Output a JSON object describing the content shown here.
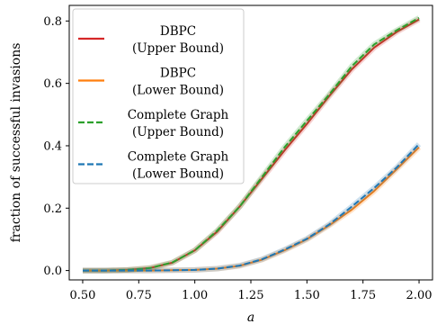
{
  "chart_data": {
    "type": "line",
    "xlabel": "a",
    "ylabel": "fraction of successful invasions",
    "xlim": [
      0.44,
      2.06
    ],
    "ylim": [
      -0.03,
      0.85
    ],
    "xticks": [
      "0.50",
      "0.75",
      "1.00",
      "1.25",
      "1.50",
      "1.75",
      "2.00"
    ],
    "yticks": [
      "0.0",
      "0.2",
      "0.4",
      "0.6",
      "0.8"
    ],
    "grid": false,
    "legend_position": "top-left",
    "x": [
      0.5,
      0.6,
      0.7,
      0.8,
      0.9,
      1.0,
      1.1,
      1.2,
      1.3,
      1.4,
      1.5,
      1.6,
      1.7,
      1.8,
      1.9,
      2.0
    ],
    "series": [
      {
        "name": "DBPC (Upper Bound)",
        "legend_lines": [
          "DBPC",
          "(Upper Bound)"
        ],
        "color": "#d62728",
        "dash": "solid",
        "values": [
          0.0,
          0.0,
          0.002,
          0.008,
          0.025,
          0.065,
          0.125,
          0.205,
          0.295,
          0.385,
          0.47,
          0.56,
          0.645,
          0.715,
          0.765,
          0.805
        ]
      },
      {
        "name": "DBPC (Lower Bound)",
        "legend_lines": [
          "DBPC",
          "(Lower Bound)"
        ],
        "color": "#ff7f0e",
        "dash": "solid",
        "values": [
          0.0,
          0.0,
          0.0,
          0.0,
          0.001,
          0.002,
          0.006,
          0.015,
          0.035,
          0.065,
          0.1,
          0.145,
          0.195,
          0.255,
          0.325,
          0.395
        ]
      },
      {
        "name": "Complete Graph (Upper Bound)",
        "legend_lines": [
          "Complete Graph",
          "(Upper Bound)"
        ],
        "color": "#2ca02c",
        "dash": "dashed",
        "values": [
          0.0,
          0.0,
          0.002,
          0.008,
          0.026,
          0.065,
          0.128,
          0.205,
          0.3,
          0.395,
          0.48,
          0.565,
          0.655,
          0.725,
          0.77,
          0.81
        ]
      },
      {
        "name": "Complete Graph (Lower Bound)",
        "legend_lines": [
          "Complete Graph",
          "(Lower Bound)"
        ],
        "color": "#1f77b4",
        "dash": "dashed",
        "values": [
          0.0,
          0.0,
          0.0,
          0.0,
          0.001,
          0.002,
          0.006,
          0.016,
          0.036,
          0.067,
          0.102,
          0.148,
          0.205,
          0.265,
          0.33,
          0.405
        ]
      }
    ]
  }
}
